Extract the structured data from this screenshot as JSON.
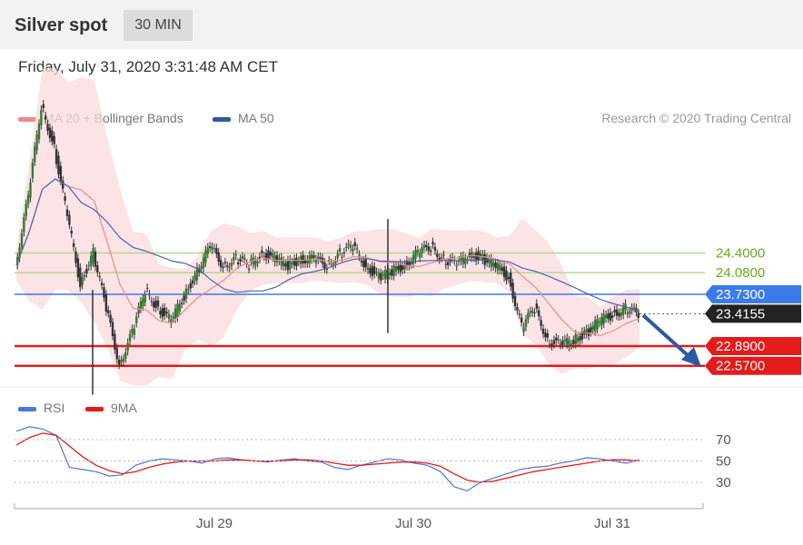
{
  "header": {
    "instrument": "Silver spot",
    "timeframe": "30 MIN"
  },
  "timestamp": "Friday, July 31, 2020 3:31:48 AM CET",
  "legend": {
    "ma20": "MA 20 + Bollinger Bands",
    "ma50": "MA 50",
    "credit": "Research © 2020 Trading Central"
  },
  "rsi_legend": {
    "rsi": "RSI",
    "ma9": "9MA"
  },
  "colors": {
    "bollinger": "#fadadd",
    "ma20": "#f08a8a",
    "ma50": "#4a64a8",
    "resistance": "#b5d98a",
    "pivot": "#3a7bea",
    "support": "#e31b1b",
    "price": "#222222",
    "arrow": "#2c5aa0"
  },
  "chart_data": [
    {
      "type": "candlestick",
      "title": "Silver spot",
      "x_ticks": [
        "Jul 29",
        "Jul 30",
        "Jul 31"
      ],
      "levels": [
        {
          "label": "24.4000",
          "value": 24.4,
          "kind": "resistance"
        },
        {
          "label": "24.0800",
          "value": 24.08,
          "kind": "resistance"
        },
        {
          "label": "23.7300",
          "value": 23.73,
          "kind": "pivot"
        },
        {
          "label": "23.4155",
          "value": 23.4155,
          "kind": "last_price"
        },
        {
          "label": "22.8900",
          "value": 22.89,
          "kind": "support"
        },
        {
          "label": "22.5700",
          "value": 22.57,
          "kind": "support"
        }
      ],
      "close_approx": [
        24.2,
        25.3,
        26.8,
        26.1,
        25.0,
        23.9,
        24.4,
        23.5,
        22.6,
        23.1,
        23.8,
        23.5,
        23.3,
        23.7,
        24.1,
        24.5,
        24.2,
        24.3,
        24.2,
        24.4,
        24.3,
        24.2,
        24.3,
        24.3,
        24.2,
        24.4,
        24.5,
        24.2,
        24.0,
        24.1,
        24.2,
        24.4,
        24.5,
        24.3,
        24.2,
        24.4,
        24.3,
        24.2,
        24.0,
        23.2,
        23.5,
        23.0,
        22.9,
        23.0,
        23.1,
        23.3,
        23.4,
        23.5,
        23.4
      ]
    },
    {
      "type": "line",
      "series": [
        {
          "name": "RSI"
        },
        {
          "name": "9MA"
        }
      ],
      "y_ticks": [
        70,
        50,
        30
      ],
      "x_ticks": [
        "Jul 29",
        "Jul 30",
        "Jul 31"
      ],
      "rsi_approx": [
        78,
        82,
        80,
        74,
        44,
        42,
        40,
        36,
        37,
        46,
        50,
        52,
        51,
        50,
        48,
        52,
        53,
        51,
        50,
        49,
        51,
        52,
        50,
        49,
        44,
        42,
        46,
        49,
        52,
        51,
        48,
        46,
        40,
        26,
        22,
        30,
        34,
        38,
        42,
        44,
        45,
        48,
        50,
        53,
        52,
        50,
        48,
        51
      ],
      "ma9_approx": [
        65,
        72,
        76,
        74,
        64,
        54,
        46,
        41,
        38,
        40,
        44,
        47,
        49,
        50,
        50,
        50,
        51,
        51,
        50,
        50,
        50,
        51,
        51,
        50,
        48,
        46,
        46,
        47,
        48,
        49,
        49,
        48,
        45,
        38,
        32,
        30,
        31,
        34,
        37,
        40,
        42,
        44,
        46,
        48,
        50,
        51,
        51,
        50
      ]
    }
  ]
}
